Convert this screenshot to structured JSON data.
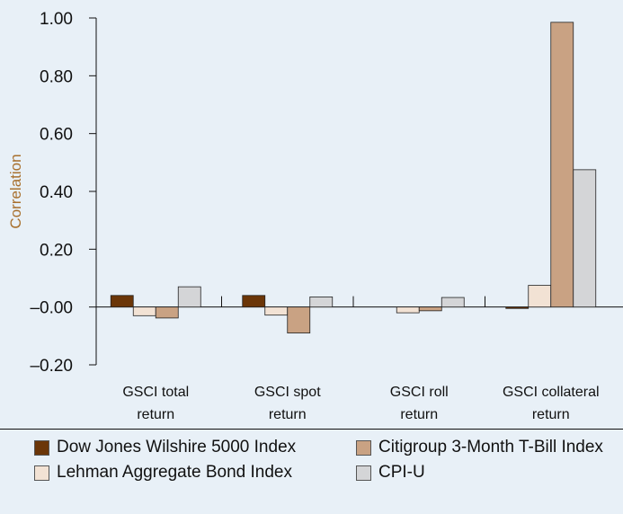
{
  "chart_data": {
    "type": "bar",
    "ylabel": "Correlation",
    "ylim": [
      -0.2,
      1.0
    ],
    "yticks": [
      "1.00",
      "0.80",
      "0.60",
      "0.40",
      "0.20",
      "–0.00",
      "–0.20"
    ],
    "categories": [
      [
        "GSCI total",
        "return"
      ],
      [
        "GSCI spot",
        "return"
      ],
      [
        "GSCI roll",
        "return"
      ],
      [
        "GSCI collateral",
        "return"
      ]
    ],
    "series": [
      {
        "name": "Dow Jones Wilshire 5000 Index",
        "color": "#6b3608",
        "values": [
          0.04,
          0.04,
          0.0,
          -0.005
        ]
      },
      {
        "name": "Lehman Aggregate Bond Index",
        "color": "#f2e2d4",
        "values": [
          -0.03,
          -0.028,
          -0.02,
          0.075
        ]
      },
      {
        "name": "Citigroup 3-Month T-Bill Index",
        "color": "#c9a283",
        "values": [
          -0.038,
          -0.09,
          -0.013,
          0.985
        ]
      },
      {
        "name": "CPI-U",
        "color": "#d4d5d7",
        "values": [
          0.07,
          0.035,
          0.033,
          0.475
        ]
      }
    ],
    "legend_position": "bottom",
    "grid": false
  },
  "colors": {
    "background": "#e8f0f7",
    "axis": "#111111",
    "ylabel": "#a8702e"
  }
}
